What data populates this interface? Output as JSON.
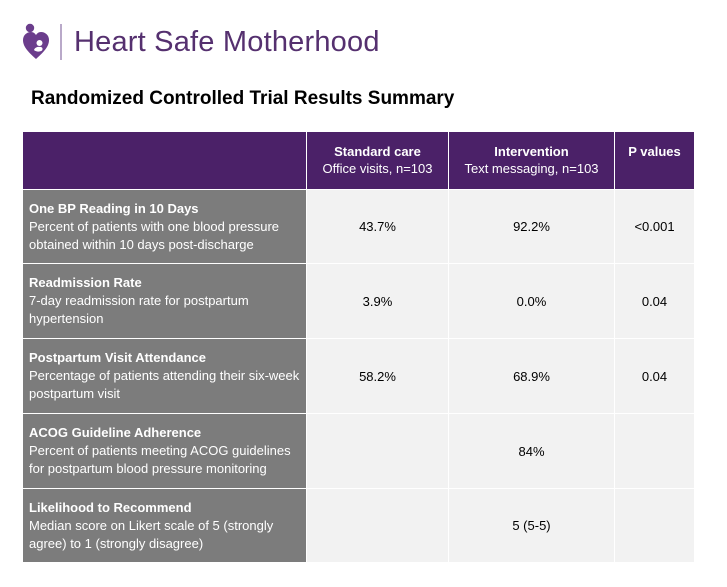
{
  "brand": {
    "name": "Heart Safe Motherhood"
  },
  "page_title": "Randomized Controlled Trial Results Summary",
  "columns": [
    {
      "main": "",
      "sub": ""
    },
    {
      "main": "Standard care",
      "sub": "Office visits, n=103"
    },
    {
      "main": "Intervention",
      "sub": "Text messaging, n=103"
    },
    {
      "main": "P values",
      "sub": ""
    }
  ],
  "rows": [
    {
      "title": "One BP Reading in 10 Days",
      "desc": "Percent of patients with one blood pressure obtained within 10 days post-discharge",
      "standard": "43.7%",
      "intervention": "92.2%",
      "p": "<0.001"
    },
    {
      "title": "Readmission Rate",
      "desc": "7-day readmission rate for postpartum hypertension",
      "standard": "3.9%",
      "intervention": "0.0%",
      "p": "0.04"
    },
    {
      "title": "Postpartum Visit Attendance",
      "desc": "Percentage of patients attending their six-week postpartum visit",
      "standard": "58.2%",
      "intervention": "68.9%",
      "p": "0.04"
    },
    {
      "title": "ACOG Guideline Adherence",
      "desc": "Percent of patients meeting ACOG guidelines for postpartum blood pressure monitoring",
      "standard": "",
      "intervention": "84%",
      "p": ""
    },
    {
      "title": "Likelihood to Recommend",
      "desc": "Median score on Likert scale of 5 (strongly agree) to 1 (strongly disagree)",
      "standard": "",
      "intervention": "5 (5-5)",
      "p": ""
    }
  ],
  "colors": {
    "brand_purple": "#55306f",
    "header_purple": "#4b2168",
    "row_label_gray": "#7c7c7c",
    "cell_light_gray": "#f2f2f2"
  },
  "icons": {
    "logo": "heart-mother-logo-icon"
  }
}
